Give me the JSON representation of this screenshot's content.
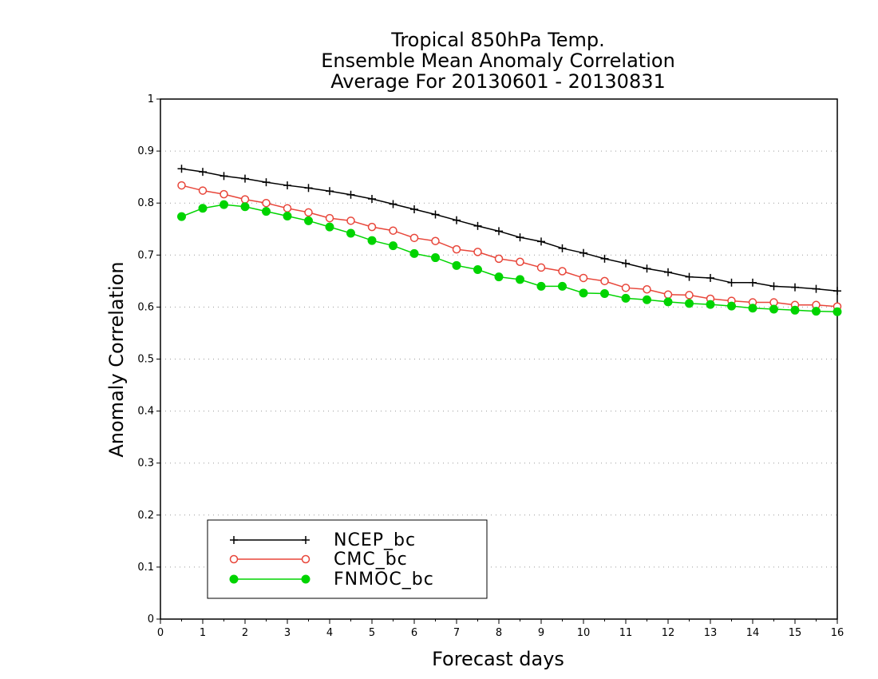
{
  "chart_data": {
    "type": "line",
    "title": [
      "Tropical 850hPa Temp.",
      "Ensemble Mean Anomaly Correlation",
      "Average For 20130601 - 20130831"
    ],
    "xlabel": "Forecast days",
    "ylabel": "Anomaly Correlation",
    "xlim": [
      0,
      16
    ],
    "ylim": [
      0,
      1
    ],
    "xticks": [
      "0",
      "1",
      "2",
      "3",
      "4",
      "5",
      "6",
      "7",
      "8",
      "9",
      "10",
      "11",
      "12",
      "13",
      "14",
      "15",
      "16"
    ],
    "yticks": [
      "0",
      "0.1",
      "0.2",
      "0.3",
      "0.4",
      "0.5",
      "0.6",
      "0.7",
      "0.8",
      "0.9",
      "1"
    ],
    "grid": true,
    "legend_position": "bottom-left",
    "x": [
      0.5,
      1,
      1.5,
      2,
      2.5,
      3,
      3.5,
      4,
      4.5,
      5,
      5.5,
      6,
      6.5,
      7,
      7.5,
      8,
      8.5,
      9,
      9.5,
      10,
      10.5,
      11,
      11.5,
      12,
      12.5,
      13,
      13.5,
      14,
      14.5,
      15,
      15.5,
      16
    ],
    "series": [
      {
        "name": "NCEP_bc",
        "color": "#000000",
        "marker": "plus",
        "values": [
          0.866,
          0.86,
          0.852,
          0.847,
          0.84,
          0.834,
          0.829,
          0.823,
          0.816,
          0.808,
          0.798,
          0.788,
          0.778,
          0.767,
          0.756,
          0.746,
          0.734,
          0.726,
          0.713,
          0.704,
          0.693,
          0.684,
          0.674,
          0.667,
          0.658,
          0.656,
          0.647,
          0.647,
          0.64,
          0.638,
          0.635,
          0.631
        ]
      },
      {
        "name": "CMC_bc",
        "color": "#e8463a",
        "marker": "open-circle",
        "values": [
          0.834,
          0.824,
          0.817,
          0.807,
          0.8,
          0.79,
          0.782,
          0.771,
          0.766,
          0.754,
          0.747,
          0.733,
          0.727,
          0.711,
          0.706,
          0.693,
          0.687,
          0.676,
          0.669,
          0.656,
          0.65,
          0.637,
          0.634,
          0.624,
          0.623,
          0.616,
          0.612,
          0.609,
          0.609,
          0.604,
          0.604,
          0.601
        ]
      },
      {
        "name": "FNMOC_bc",
        "color": "#00d400",
        "marker": "filled-circle",
        "values": [
          0.774,
          0.79,
          0.797,
          0.793,
          0.784,
          0.775,
          0.766,
          0.754,
          0.742,
          0.728,
          0.718,
          0.703,
          0.695,
          0.68,
          0.672,
          0.658,
          0.653,
          0.64,
          0.64,
          0.627,
          0.626,
          0.617,
          0.614,
          0.61,
          0.607,
          0.605,
          0.602,
          0.598,
          0.596,
          0.594,
          0.592,
          0.591
        ]
      }
    ]
  }
}
